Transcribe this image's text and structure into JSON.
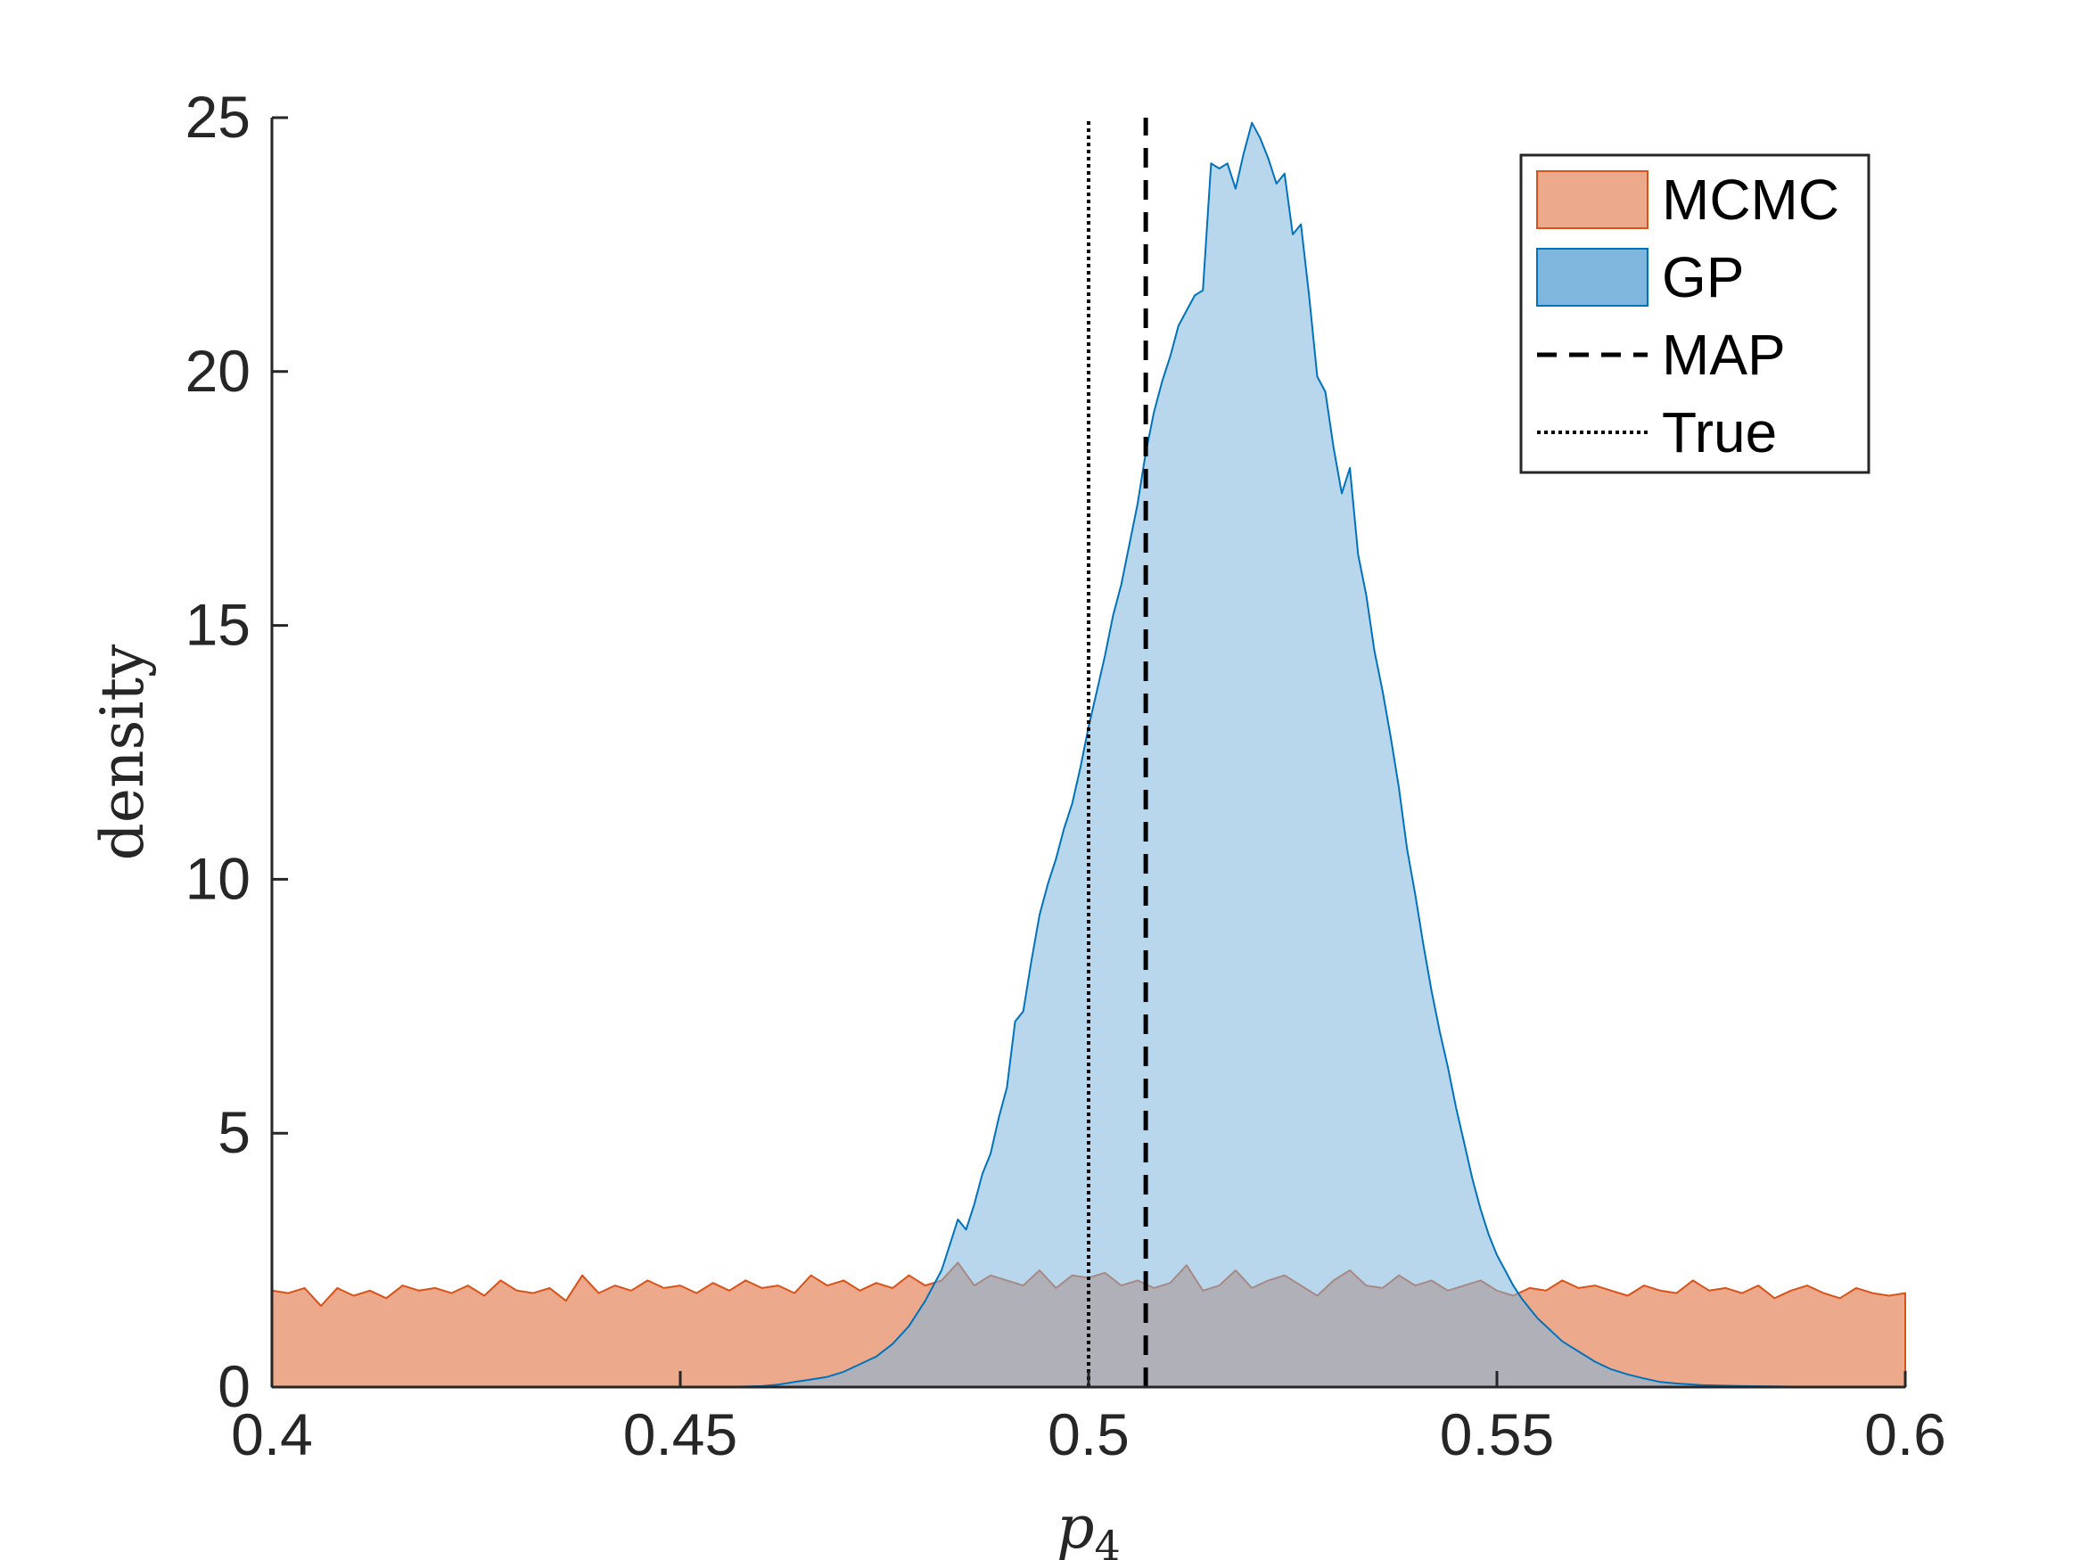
{
  "chart_data": {
    "type": "area",
    "xlabel": "p",
    "xlabel_subscript": "4",
    "ylabel": "density",
    "xlim": [
      0.4,
      0.6
    ],
    "ylim": [
      0,
      25
    ],
    "xticks": [
      0.4,
      0.45,
      0.5,
      0.55,
      0.6
    ],
    "xtick_labels": [
      "0.4",
      "0.45",
      "0.5",
      "0.55",
      "0.6"
    ],
    "yticks": [
      0,
      5,
      10,
      15,
      20,
      25
    ],
    "ytick_labels": [
      "0",
      "5",
      "10",
      "15",
      "20",
      "25"
    ],
    "grid": false,
    "legend_position": "top-right",
    "series": [
      {
        "name": "MCMC",
        "kind": "area",
        "color": "#EDA98B",
        "edge": "#D95319",
        "x": [
          0.4,
          0.402,
          0.404,
          0.406,
          0.408,
          0.41,
          0.412,
          0.414,
          0.416,
          0.418,
          0.42,
          0.422,
          0.424,
          0.426,
          0.428,
          0.43,
          0.432,
          0.434,
          0.436,
          0.438,
          0.44,
          0.442,
          0.444,
          0.446,
          0.448,
          0.45,
          0.452,
          0.454,
          0.456,
          0.458,
          0.46,
          0.462,
          0.464,
          0.466,
          0.468,
          0.47,
          0.472,
          0.474,
          0.476,
          0.478,
          0.48,
          0.482,
          0.484,
          0.486,
          0.488,
          0.49,
          0.492,
          0.494,
          0.496,
          0.498,
          0.5,
          0.502,
          0.504,
          0.506,
          0.508,
          0.51,
          0.512,
          0.514,
          0.516,
          0.518,
          0.52,
          0.522,
          0.524,
          0.526,
          0.528,
          0.53,
          0.532,
          0.534,
          0.536,
          0.538,
          0.54,
          0.542,
          0.544,
          0.546,
          0.548,
          0.55,
          0.552,
          0.554,
          0.556,
          0.558,
          0.56,
          0.562,
          0.564,
          0.566,
          0.568,
          0.57,
          0.572,
          0.574,
          0.576,
          0.578,
          0.58,
          0.582,
          0.584,
          0.586,
          0.588,
          0.59,
          0.592,
          0.594,
          0.596,
          0.598,
          0.6
        ],
        "values": [
          1.9,
          1.85,
          1.95,
          1.6,
          1.95,
          1.8,
          1.9,
          1.75,
          2.0,
          1.9,
          1.95,
          1.85,
          2.0,
          1.8,
          2.1,
          1.9,
          1.85,
          1.95,
          1.7,
          2.2,
          1.85,
          2.0,
          1.9,
          2.1,
          1.95,
          2.0,
          1.85,
          2.05,
          1.9,
          2.1,
          1.95,
          2.0,
          1.85,
          2.2,
          2.0,
          2.1,
          1.9,
          2.05,
          1.95,
          2.2,
          2.0,
          2.1,
          2.45,
          2.0,
          2.2,
          2.1,
          2.0,
          2.3,
          1.95,
          2.2,
          2.15,
          2.25,
          2.0,
          2.1,
          1.95,
          2.05,
          2.4,
          1.9,
          2.0,
          2.3,
          1.95,
          2.1,
          2.2,
          2.0,
          1.8,
          2.1,
          2.3,
          2.0,
          1.95,
          2.2,
          2.0,
          2.1,
          1.9,
          2.0,
          2.1,
          1.9,
          1.8,
          1.95,
          1.9,
          2.1,
          1.95,
          2.0,
          1.9,
          1.8,
          2.0,
          1.9,
          1.85,
          2.1,
          1.9,
          1.95,
          1.85,
          2.0,
          1.75,
          1.9,
          2.0,
          1.85,
          1.75,
          1.95,
          1.85,
          1.8,
          1.85
        ]
      },
      {
        "name": "GP",
        "kind": "area",
        "color": "#7EB6DE",
        "edge": "#0072BD",
        "x": [
          0.4,
          0.405,
          0.41,
          0.415,
          0.42,
          0.425,
          0.43,
          0.435,
          0.44,
          0.445,
          0.45,
          0.455,
          0.46,
          0.462,
          0.464,
          0.466,
          0.468,
          0.47,
          0.472,
          0.474,
          0.476,
          0.478,
          0.48,
          0.482,
          0.483,
          0.484,
          0.485,
          0.486,
          0.487,
          0.488,
          0.489,
          0.49,
          0.491,
          0.492,
          0.493,
          0.494,
          0.495,
          0.496,
          0.497,
          0.498,
          0.499,
          0.5,
          0.501,
          0.502,
          0.503,
          0.504,
          0.505,
          0.506,
          0.507,
          0.508,
          0.509,
          0.51,
          0.511,
          0.512,
          0.513,
          0.514,
          0.515,
          0.516,
          0.517,
          0.518,
          0.519,
          0.52,
          0.521,
          0.522,
          0.523,
          0.524,
          0.525,
          0.526,
          0.527,
          0.528,
          0.529,
          0.53,
          0.531,
          0.532,
          0.533,
          0.534,
          0.535,
          0.536,
          0.537,
          0.538,
          0.539,
          0.54,
          0.541,
          0.542,
          0.543,
          0.544,
          0.545,
          0.546,
          0.547,
          0.548,
          0.549,
          0.55,
          0.551,
          0.552,
          0.553,
          0.554,
          0.555,
          0.556,
          0.557,
          0.558,
          0.56,
          0.562,
          0.564,
          0.566,
          0.568,
          0.57,
          0.572,
          0.575,
          0.58,
          0.585,
          0.59,
          0.595,
          0.6
        ],
        "values": [
          0,
          0,
          0,
          0,
          0,
          0,
          0,
          0,
          0,
          0,
          0,
          0,
          0.02,
          0.05,
          0.1,
          0.15,
          0.2,
          0.3,
          0.45,
          0.6,
          0.85,
          1.2,
          1.7,
          2.3,
          2.8,
          3.3,
          3.1,
          3.6,
          4.2,
          4.6,
          5.3,
          5.9,
          7.2,
          7.4,
          8.4,
          9.3,
          9.9,
          10.4,
          11.0,
          11.5,
          12.2,
          13.0,
          13.7,
          14.4,
          15.2,
          15.8,
          16.6,
          17.4,
          18.4,
          19.2,
          19.8,
          20.3,
          20.9,
          21.2,
          21.5,
          21.6,
          24.1,
          24.0,
          24.1,
          23.6,
          24.3,
          24.9,
          24.6,
          24.2,
          23.7,
          23.9,
          22.7,
          22.9,
          21.5,
          19.9,
          19.6,
          18.5,
          17.6,
          18.1,
          16.4,
          15.6,
          14.5,
          13.7,
          12.8,
          11.8,
          10.6,
          9.7,
          8.7,
          7.8,
          7.0,
          6.3,
          5.5,
          4.8,
          4.1,
          3.5,
          3.0,
          2.6,
          2.3,
          2.0,
          1.75,
          1.55,
          1.35,
          1.2,
          1.05,
          0.9,
          0.7,
          0.5,
          0.35,
          0.25,
          0.17,
          0.1,
          0.07,
          0.04,
          0.02,
          0.01,
          0,
          0,
          0
        ]
      },
      {
        "name": "MAP",
        "kind": "vline",
        "style": "dashed",
        "color": "#000000",
        "x": 0.507
      },
      {
        "name": "True",
        "kind": "vline",
        "style": "dotted",
        "color": "#000000",
        "x": 0.5
      }
    ]
  }
}
